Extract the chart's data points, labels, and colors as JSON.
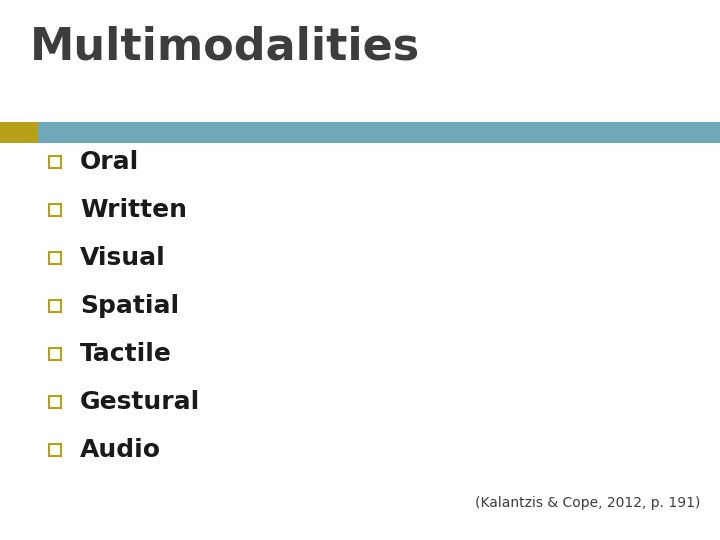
{
  "title": "Multimodalities",
  "title_color": "#3d3d3d",
  "title_fontsize": 32,
  "title_font_weight": "bold",
  "background_color": "#ffffff",
  "bar_left_color": "#b5a018",
  "bar_right_color": "#6fa8b8",
  "bullet_items": [
    "Oral",
    "Written",
    "Visual",
    "Spatial",
    "Tactile",
    "Gestural",
    "Audio"
  ],
  "bullet_box_color": "#b5a018",
  "bullet_text_color": "#1a1a1a",
  "bullet_fontsize": 18,
  "citation_text": "(Kalantzis & Cope, 2012, p. 191)",
  "citation_fontsize": 10,
  "citation_color": "#3d3d3d"
}
